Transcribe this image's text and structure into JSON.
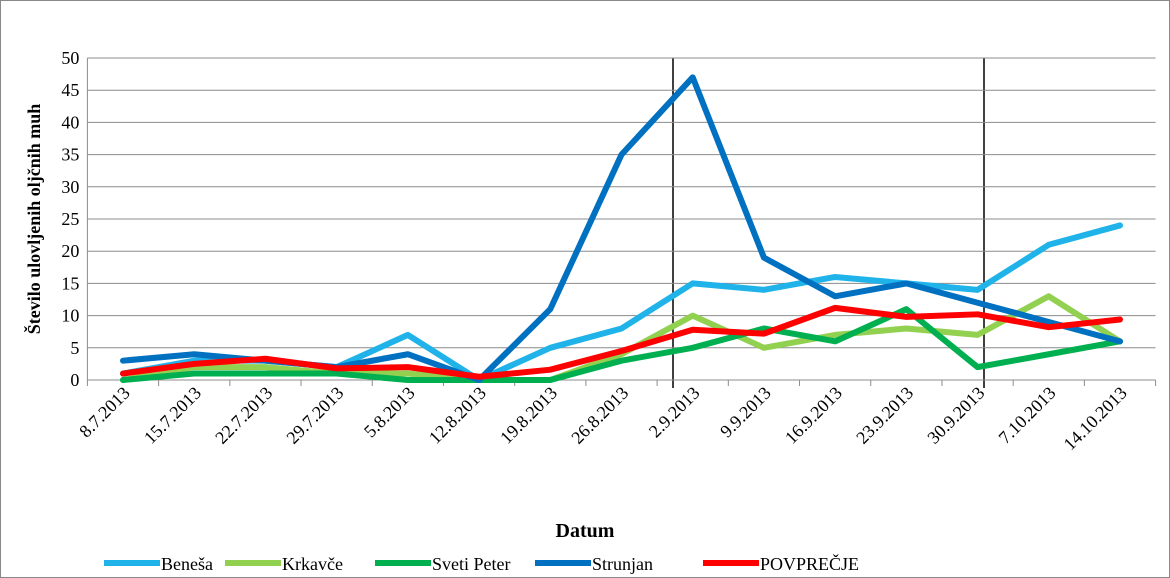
{
  "chart_data": {
    "type": "line",
    "x_label": "Datum",
    "y_label": "Število ulovljenih oljčnih muh",
    "categories": [
      "8.7.2013",
      "15.7.2013",
      "22.7.2013",
      "29.7.2013",
      "5.8.2013",
      "12.8.2013",
      "19.8.2013",
      "26.8.2013",
      "2.9.2013",
      "9.9.2013",
      "16.9.2013",
      "23.9.2013",
      "30.9.2013",
      "7.10.2013",
      "14.10.2013"
    ],
    "series": [
      {
        "name": "Beneša",
        "color": "#1fb3ea",
        "values": [
          1,
          3,
          3,
          2,
          7,
          0,
          5,
          8,
          15,
          14,
          16,
          15,
          14,
          21,
          24
        ]
      },
      {
        "name": "Krkavče",
        "color": "#92d050",
        "values": [
          0,
          2,
          2,
          1,
          1,
          0,
          0,
          4,
          10,
          5,
          7,
          8,
          7,
          13,
          6
        ]
      },
      {
        "name": "Sveti Peter",
        "color": "#00b050",
        "values": [
          0,
          1,
          1,
          1,
          0,
          0,
          0,
          3,
          5,
          8,
          6,
          11,
          2,
          4,
          6
        ]
      },
      {
        "name": "Strunjan",
        "color": "#0070c0",
        "values": [
          3,
          4,
          3,
          2,
          4,
          0,
          11,
          35,
          47,
          19,
          13,
          15,
          12,
          9,
          6
        ]
      },
      {
        "name": "POVPREČJE",
        "color": "#ff0000",
        "values": [
          1,
          2.5,
          3.3,
          1.8,
          2,
          0.5,
          1.6,
          4.5,
          7.8,
          7.2,
          11.2,
          9.8,
          10.2,
          8.2,
          9.4
        ]
      }
    ],
    "ylim": [
      0,
      50
    ],
    "yticks": [
      0,
      5,
      10,
      15,
      20,
      25,
      30,
      35,
      40,
      45,
      50
    ],
    "grid": true,
    "legend": "bottom"
  }
}
